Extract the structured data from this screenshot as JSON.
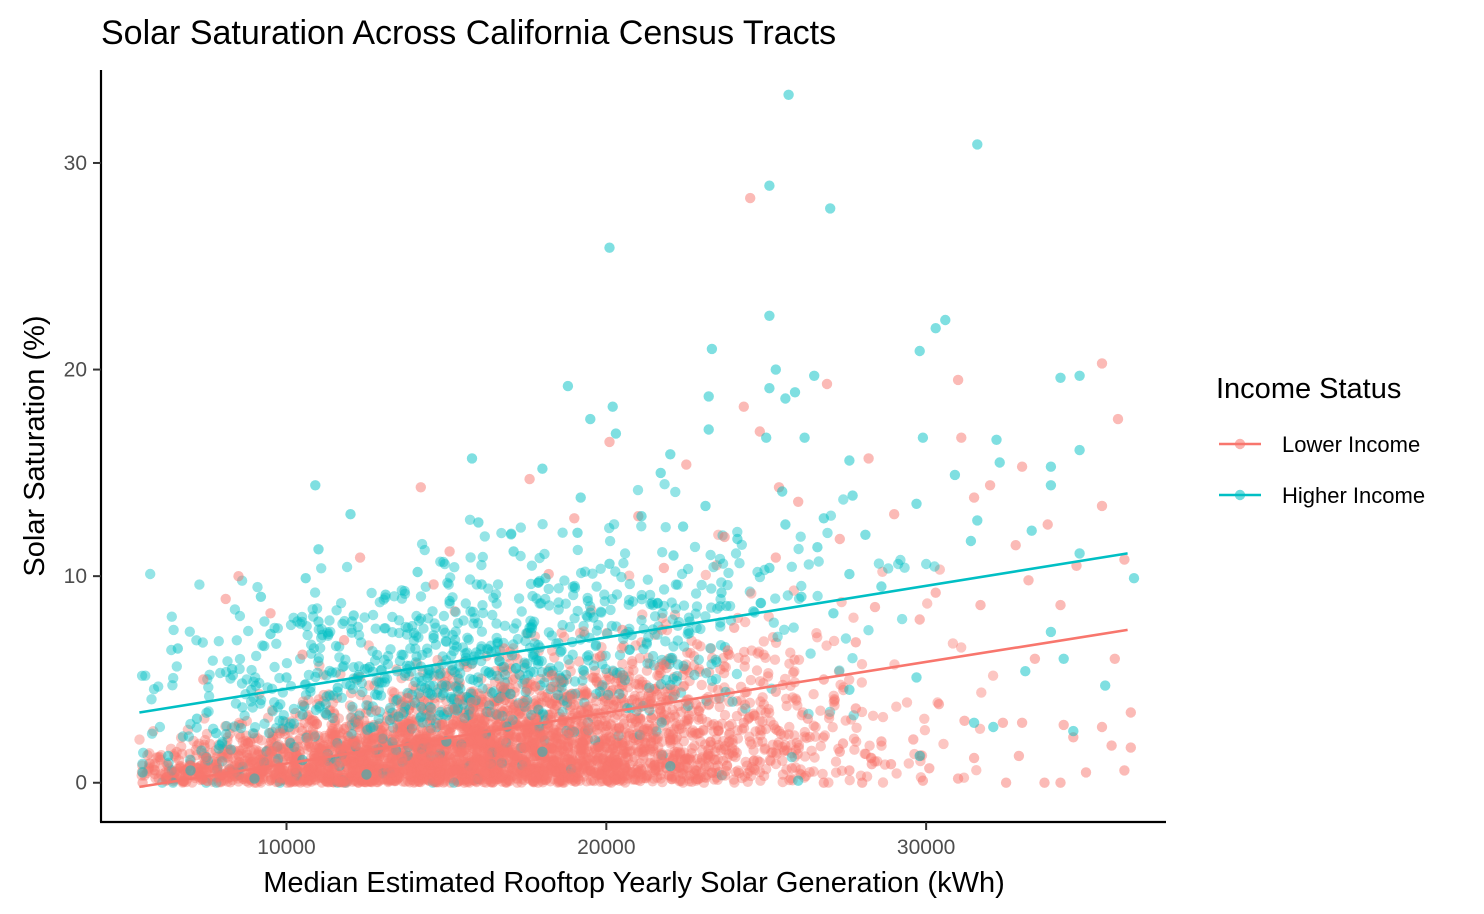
{
  "chart_data": {
    "type": "scatter",
    "title": "Solar Saturation Across California Census Tracts",
    "xlabel": "Median Estimated Rooftop Yearly Solar Generation (kWh)",
    "ylabel": "Solar Saturation (%)",
    "xlim": [
      4200,
      37500
    ],
    "ylim": [
      -1.9,
      34.5
    ],
    "x_ticks": [
      {
        "value": 10000,
        "label": "10000"
      },
      {
        "value": 20000,
        "label": "20000"
      },
      {
        "value": 30000,
        "label": "30000"
      }
    ],
    "y_ticks": [
      {
        "value": 0,
        "label": "0"
      },
      {
        "value": 10,
        "label": "10"
      },
      {
        "value": 20,
        "label": "20"
      },
      {
        "value": 30,
        "label": "30"
      }
    ],
    "grid": false,
    "legend": {
      "title": "Income Status",
      "position": "right"
    },
    "series": [
      {
        "name": "Lower Income",
        "color": "#F8766D",
        "trend_line": {
          "x": [
            5400,
            36300
          ],
          "y": [
            -0.2,
            7.4
          ]
        },
        "points": [
          [
            24500,
            28.3
          ],
          [
            35500,
            20.3
          ],
          [
            31000,
            19.5
          ],
          [
            26900,
            19.3
          ],
          [
            36000,
            17.6
          ],
          [
            24300,
            18.2
          ],
          [
            31100,
            16.7
          ],
          [
            24800,
            17.0
          ],
          [
            28200,
            15.7
          ],
          [
            33000,
            15.3
          ],
          [
            14200,
            14.3
          ],
          [
            32000,
            14.4
          ],
          [
            17600,
            14.7
          ],
          [
            19000,
            12.8
          ],
          [
            35500,
            13.4
          ],
          [
            25400,
            14.3
          ],
          [
            31500,
            13.8
          ],
          [
            20100,
            16.5
          ],
          [
            8500,
            10.0
          ],
          [
            22500,
            15.4
          ],
          [
            29000,
            13.0
          ],
          [
            33800,
            12.5
          ],
          [
            21000,
            12.9
          ],
          [
            26000,
            13.6
          ],
          [
            8100,
            8.9
          ],
          [
            32800,
            11.5
          ],
          [
            34700,
            10.5
          ],
          [
            23700,
            11.9
          ],
          [
            27300,
            11.8
          ],
          [
            36200,
            10.8
          ],
          [
            9500,
            8.2
          ],
          [
            33200,
            9.8
          ],
          [
            30300,
            9.2
          ],
          [
            21800,
            10.4
          ],
          [
            15100,
            11.2
          ],
          [
            12300,
            10.9
          ],
          [
            18200,
            10.1
          ],
          [
            25300,
            10.9
          ],
          [
            29800,
            7.9
          ],
          [
            34200,
            8.6
          ],
          [
            31700,
            8.6
          ],
          [
            28400,
            8.5
          ],
          [
            14600,
            9.6
          ],
          [
            7400,
            5.0
          ],
          [
            35900,
            6.0
          ],
          [
            33400,
            6.0
          ],
          [
            27800,
            6.8
          ],
          [
            24000,
            7.5
          ],
          [
            20500,
            7.4
          ],
          [
            16800,
            6.5
          ],
          [
            11800,
            6.9
          ],
          [
            10500,
            6.2
          ],
          [
            33000,
            2.9
          ],
          [
            36400,
            3.4
          ],
          [
            35500,
            2.7
          ],
          [
            34300,
            2.8
          ],
          [
            32400,
            2.9
          ],
          [
            31200,
            3.0
          ],
          [
            30400,
            3.8
          ],
          [
            29600,
            2.1
          ],
          [
            28600,
            2.0
          ],
          [
            27400,
            1.9
          ],
          [
            35800,
            1.8
          ],
          [
            36400,
            1.7
          ],
          [
            34600,
            2.2
          ],
          [
            32900,
            1.3
          ],
          [
            31500,
            1.2
          ],
          [
            30100,
            0.7
          ],
          [
            28900,
            0.9
          ],
          [
            27600,
            0.6
          ],
          [
            36200,
            0.6
          ],
          [
            35000,
            0.5
          ],
          [
            33700,
            0.0
          ],
          [
            32500,
            0.0
          ],
          [
            31000,
            0.2
          ],
          [
            29900,
            0.1
          ],
          [
            28000,
            0.0
          ],
          [
            26800,
            0.0
          ],
          [
            34200,
            0.0
          ],
          [
            5500,
            0.0
          ],
          [
            6000,
            0.2
          ],
          [
            6500,
            0.5
          ],
          [
            7000,
            0.8
          ],
          [
            7500,
            1.2
          ],
          [
            8000,
            0.4
          ],
          [
            8800,
            1.9
          ],
          [
            9300,
            0.6
          ],
          [
            9800,
            2.4
          ],
          [
            10300,
            1.1
          ],
          [
            10800,
            3.0
          ],
          [
            11300,
            0.8
          ],
          [
            11800,
            2.6
          ],
          [
            12300,
            1.5
          ],
          [
            12800,
            3.5
          ],
          [
            13300,
            0.5
          ],
          [
            13800,
            4.1
          ],
          [
            14300,
            1.9
          ],
          [
            14800,
            2.8
          ],
          [
            15300,
            0.6
          ],
          [
            15800,
            3.9
          ],
          [
            16300,
            1.3
          ],
          [
            16800,
            4.6
          ],
          [
            17300,
            2.2
          ],
          [
            17800,
            0.3
          ],
          [
            18300,
            5.2
          ],
          [
            18800,
            1.7
          ],
          [
            19300,
            3.4
          ],
          [
            19800,
            6.1
          ],
          [
            20300,
            0.9
          ],
          [
            20800,
            4.0
          ],
          [
            21300,
            2.5
          ],
          [
            21800,
            5.7
          ],
          [
            22300,
            1.4
          ],
          [
            22800,
            3.8
          ],
          [
            23300,
            0.5
          ],
          [
            23800,
            6.4
          ],
          [
            24300,
            2.9
          ],
          [
            24800,
            1.0
          ],
          [
            25300,
            4.4
          ],
          [
            25800,
            0.7
          ],
          [
            26300,
            3.1
          ],
          [
            26800,
            5.0
          ],
          [
            27300,
            1.5
          ],
          [
            27800,
            3.6
          ],
          [
            28300,
            0.9
          ]
        ]
      },
      {
        "name": "Higher Income",
        "color": "#00BFC4",
        "trend_line": {
          "x": [
            5400,
            36300
          ],
          "y": [
            3.4,
            11.1
          ]
        },
        "points": [
          [
            25700,
            33.3
          ],
          [
            31600,
            30.9
          ],
          [
            25100,
            28.9
          ],
          [
            27000,
            27.8
          ],
          [
            20100,
            25.9
          ],
          [
            25100,
            22.6
          ],
          [
            30600,
            22.4
          ],
          [
            30300,
            22.0
          ],
          [
            23300,
            21.0
          ],
          [
            29800,
            20.9
          ],
          [
            25300,
            20.0
          ],
          [
            26500,
            19.7
          ],
          [
            34800,
            19.7
          ],
          [
            34200,
            19.6
          ],
          [
            18800,
            19.2
          ],
          [
            25100,
            19.1
          ],
          [
            25900,
            18.9
          ],
          [
            23200,
            18.7
          ],
          [
            25600,
            18.6
          ],
          [
            20200,
            18.2
          ],
          [
            19500,
            17.6
          ],
          [
            23200,
            17.1
          ],
          [
            20300,
            16.9
          ],
          [
            29900,
            16.7
          ],
          [
            32200,
            16.6
          ],
          [
            25000,
            16.7
          ],
          [
            26200,
            16.7
          ],
          [
            34800,
            16.1
          ],
          [
            15800,
            15.7
          ],
          [
            22000,
            15.9
          ],
          [
            27600,
            15.6
          ],
          [
            32300,
            15.5
          ],
          [
            33900,
            15.3
          ],
          [
            18000,
            15.2
          ],
          [
            21700,
            15.0
          ],
          [
            30900,
            14.9
          ],
          [
            10900,
            14.4
          ],
          [
            33900,
            14.4
          ],
          [
            25500,
            14.1
          ],
          [
            19200,
            13.8
          ],
          [
            29700,
            13.5
          ],
          [
            27700,
            13.9
          ],
          [
            31600,
            12.7
          ],
          [
            33300,
            12.2
          ],
          [
            12000,
            13.0
          ],
          [
            26800,
            12.8
          ],
          [
            16000,
            12.6
          ],
          [
            22400,
            12.4
          ],
          [
            31400,
            11.7
          ],
          [
            34800,
            11.1
          ],
          [
            11000,
            11.3
          ],
          [
            36500,
            9.9
          ],
          [
            10600,
            9.9
          ],
          [
            9200,
            9.0
          ],
          [
            33900,
            7.3
          ],
          [
            34300,
            6.0
          ],
          [
            35600,
            4.7
          ],
          [
            33100,
            5.4
          ],
          [
            29700,
            5.1
          ],
          [
            6600,
            6.5
          ],
          [
            27600,
            4.5
          ],
          [
            29800,
            1.3
          ],
          [
            31500,
            2.9
          ],
          [
            32100,
            2.7
          ],
          [
            34600,
            2.5
          ],
          [
            5500,
            0.5
          ],
          [
            6300,
            1.3
          ],
          [
            7200,
            3.1
          ],
          [
            7800,
            2.4
          ],
          [
            8300,
            5.5
          ],
          [
            8900,
            4.5
          ],
          [
            9500,
            7.2
          ],
          [
            10000,
            5.1
          ],
          [
            10500,
            3.3
          ],
          [
            11000,
            7.8
          ],
          [
            11600,
            4.6
          ],
          [
            12100,
            8.1
          ],
          [
            12600,
            5.6
          ],
          [
            13100,
            9.1
          ],
          [
            13600,
            6.2
          ],
          [
            14100,
            10.2
          ],
          [
            14600,
            7.0
          ],
          [
            15100,
            8.8
          ],
          [
            15600,
            5.9
          ],
          [
            16100,
            9.6
          ],
          [
            16600,
            6.8
          ],
          [
            17100,
            11.2
          ],
          [
            17600,
            7.5
          ],
          [
            18100,
            9.9
          ],
          [
            18600,
            6.4
          ],
          [
            19100,
            12.1
          ],
          [
            19600,
            8.0
          ],
          [
            20100,
            10.6
          ],
          [
            20600,
            7.2
          ],
          [
            21100,
            12.9
          ],
          [
            21600,
            8.7
          ],
          [
            22100,
            11.0
          ],
          [
            22600,
            7.8
          ],
          [
            23100,
            13.4
          ],
          [
            23600,
            9.2
          ],
          [
            24100,
            11.8
          ],
          [
            24600,
            8.3
          ],
          [
            25100,
            10.4
          ],
          [
            25600,
            12.5
          ],
          [
            26100,
            9.0
          ],
          [
            26600,
            11.4
          ],
          [
            27100,
            8.2
          ],
          [
            27600,
            10.1
          ],
          [
            28100,
            12.0
          ],
          [
            28600,
            9.5
          ],
          [
            9000,
            0.2
          ],
          [
            10500,
            1.1
          ],
          [
            12500,
            0.4
          ],
          [
            15000,
            2.0
          ],
          [
            18000,
            1.5
          ],
          [
            22000,
            0.8
          ],
          [
            26000,
            0.1
          ],
          [
            7000,
            0.6
          ],
          [
            13500,
            3.2
          ],
          [
            17000,
            4.3
          ]
        ]
      }
    ]
  }
}
